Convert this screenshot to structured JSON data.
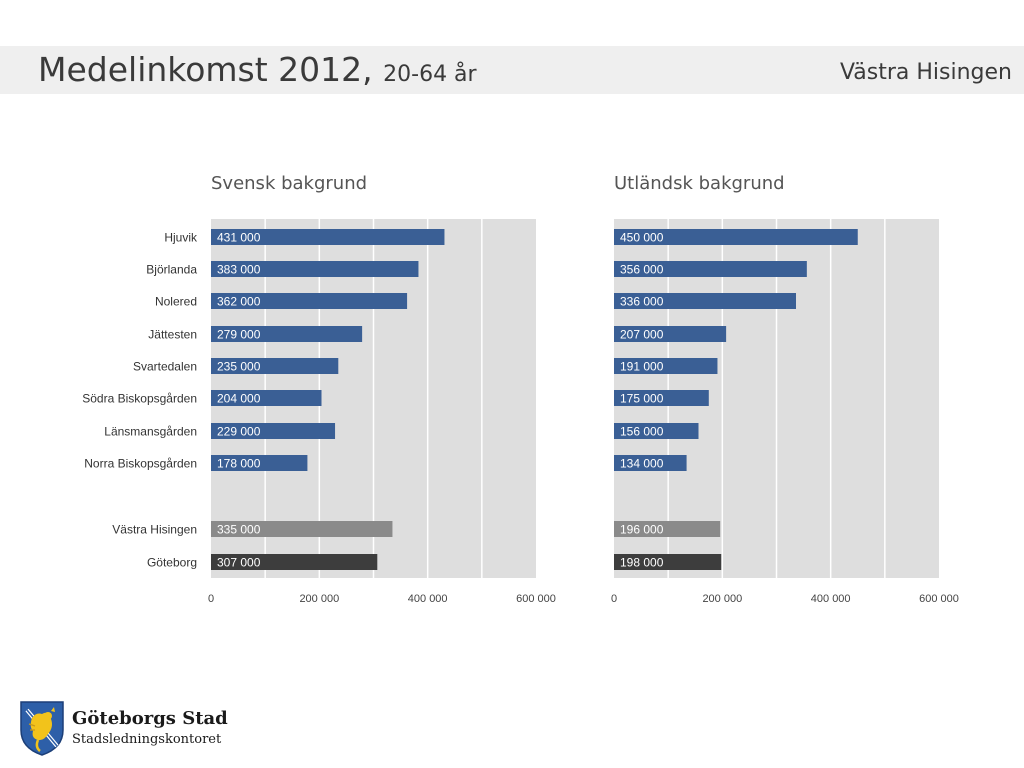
{
  "header": {
    "title": "Medelinkomst 2012,",
    "subtitle": "20-64 år",
    "region": "Västra Hisingen"
  },
  "logo": {
    "name": "Göteborgs Stad",
    "department": "Stadsledningskontoret"
  },
  "colors": {
    "bar_district": "#3a5f95",
    "bar_area": "#8a8a8a",
    "bar_city": "#3d3d3d",
    "plot_bg": "#dedede",
    "label_text": "#ffffff"
  },
  "chart_data": [
    {
      "type": "bar",
      "orientation": "horizontal",
      "title": "Svensk bakgrund",
      "categories": [
        "Hjuvik",
        "Björlanda",
        "Nolered",
        "Jättesten",
        "Svartedalen",
        "Södra Biskopsgården",
        "Länsmansgården",
        "Norra Biskopsgården",
        "Västra Hisingen",
        "Göteborg"
      ],
      "values": [
        431000,
        383000,
        362000,
        279000,
        235000,
        204000,
        229000,
        178000,
        335000,
        307000
      ],
      "value_labels": [
        "431 000",
        "383 000",
        "362 000",
        "279 000",
        "235 000",
        "204 000",
        "229 000",
        "178 000",
        "335 000",
        "307 000"
      ],
      "xlim": [
        0,
        600000
      ],
      "xticks": [
        0,
        200000,
        400000,
        600000
      ],
      "xtick_labels": [
        "0",
        "200 000",
        "400 000",
        "600 000"
      ],
      "grid": true
    },
    {
      "type": "bar",
      "orientation": "horizontal",
      "title": "Utländsk bakgrund",
      "categories": [
        "Hjuvik",
        "Björlanda",
        "Nolered",
        "Jättesten",
        "Svartedalen",
        "Södra Biskopsgården",
        "Länsmansgården",
        "Norra Biskopsgården",
        "Västra Hisingen",
        "Göteborg"
      ],
      "values": [
        450000,
        356000,
        336000,
        207000,
        191000,
        175000,
        156000,
        134000,
        196000,
        198000
      ],
      "value_labels": [
        "450 000",
        "356 000",
        "336 000",
        "207 000",
        "191 000",
        "175 000",
        "156 000",
        "134 000",
        "196 000",
        "198 000"
      ],
      "xlim": [
        0,
        600000
      ],
      "xticks": [
        0,
        200000,
        400000,
        600000
      ],
      "xtick_labels": [
        "0",
        "200 000",
        "400 000",
        "600 000"
      ],
      "grid": true
    }
  ]
}
